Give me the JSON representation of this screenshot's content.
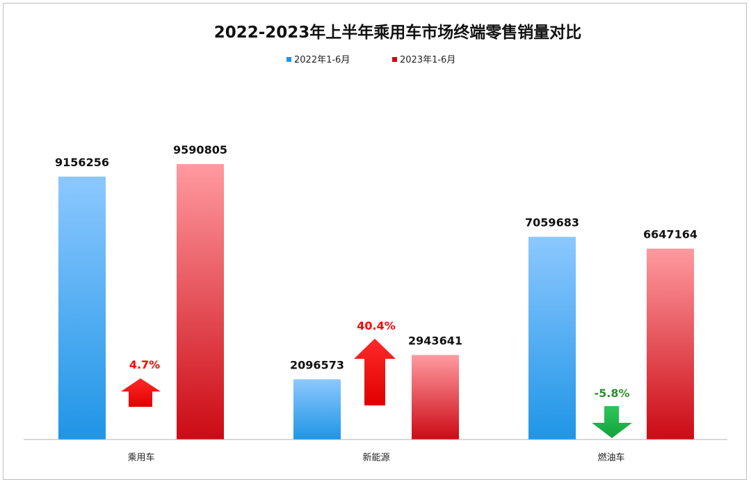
{
  "chart_data": {
    "type": "bar",
    "title": "2022-2023年上半年乘用车市场终端零售销量对比",
    "categories": [
      "乘用车",
      "新能源",
      "燃油车"
    ],
    "series": [
      {
        "name": "2022年1-6月",
        "values": [
          9156256,
          2096573,
          7059683
        ]
      },
      {
        "name": "2023年1-6月",
        "values": [
          9590805,
          2943641,
          6647164
        ]
      }
    ],
    "changes": [
      {
        "label": "4.7%",
        "direction": "up"
      },
      {
        "label": "40.4%",
        "direction": "up"
      },
      {
        "label": "-5.8%",
        "direction": "down"
      }
    ],
    "legend_position": "top-center",
    "grid": false,
    "xlabel": "",
    "ylabel": "",
    "ylim": [
      0,
      11000000
    ]
  },
  "colors": {
    "series_2022_light": "#8cc8ff",
    "series_2022_dark": "#1f95e6",
    "series_2023_light": "#ff9aa0",
    "series_2023_dark": "#cc0a14",
    "arrow_up": "#ff0000",
    "arrow_down": "#19b040",
    "change_up_text": "#ff0000",
    "change_down_text": "#2f8f2f"
  }
}
